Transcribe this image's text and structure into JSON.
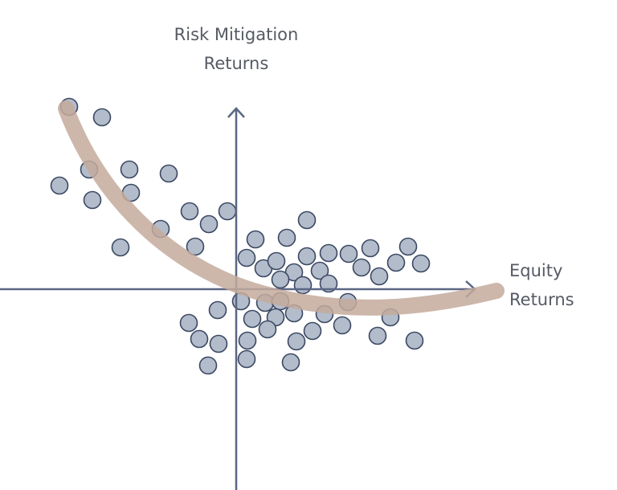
{
  "axes": {
    "y_label": [
      "Risk Mitigation",
      "Returns"
    ],
    "x_label": [
      "Equity",
      "Returns"
    ]
  }
}
